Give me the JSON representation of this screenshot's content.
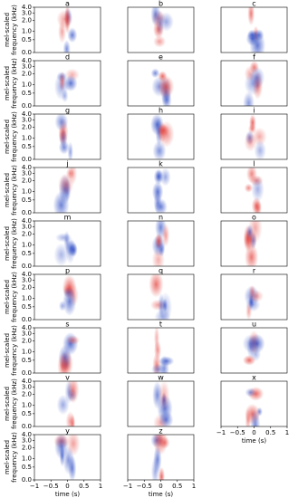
{
  "chart_data": {
    "type": "heatmap",
    "panels": [
      "a",
      "b",
      "c",
      "d",
      "e",
      "f",
      "g",
      "h",
      "i",
      "j",
      "k",
      "l",
      "m",
      "n",
      "o",
      "p",
      "q",
      "r",
      "s",
      "t",
      "u",
      "v",
      "w",
      "x",
      "y",
      "z"
    ],
    "ylabel": [
      "mel-scaled",
      "frequency (kHz)"
    ],
    "xlabel": "time (s)",
    "yscale": "mel",
    "ylim": [
      0,
      4
    ],
    "yticks": [
      {
        "value": 0,
        "label": "0.0"
      },
      {
        "value": 0.5,
        "label": "0.5"
      },
      {
        "value": 1,
        "label": "1.0"
      },
      {
        "value": 2,
        "label": "2.0"
      },
      {
        "value": 3,
        "label": "3.0"
      },
      {
        "value": 4,
        "label": "4.0"
      }
    ],
    "xlim": [
      -1,
      1
    ],
    "xticks": [
      {
        "value": -1,
        "label": "−1"
      },
      {
        "value": -0.5,
        "label": "−0.5"
      },
      {
        "value": 0,
        "label": "0"
      },
      {
        "value": 0.5,
        "label": "0.5"
      },
      {
        "value": 1,
        "label": "1"
      }
    ],
    "colors": {
      "positive": "#d62728",
      "negative": "#1f3fbf"
    }
  }
}
